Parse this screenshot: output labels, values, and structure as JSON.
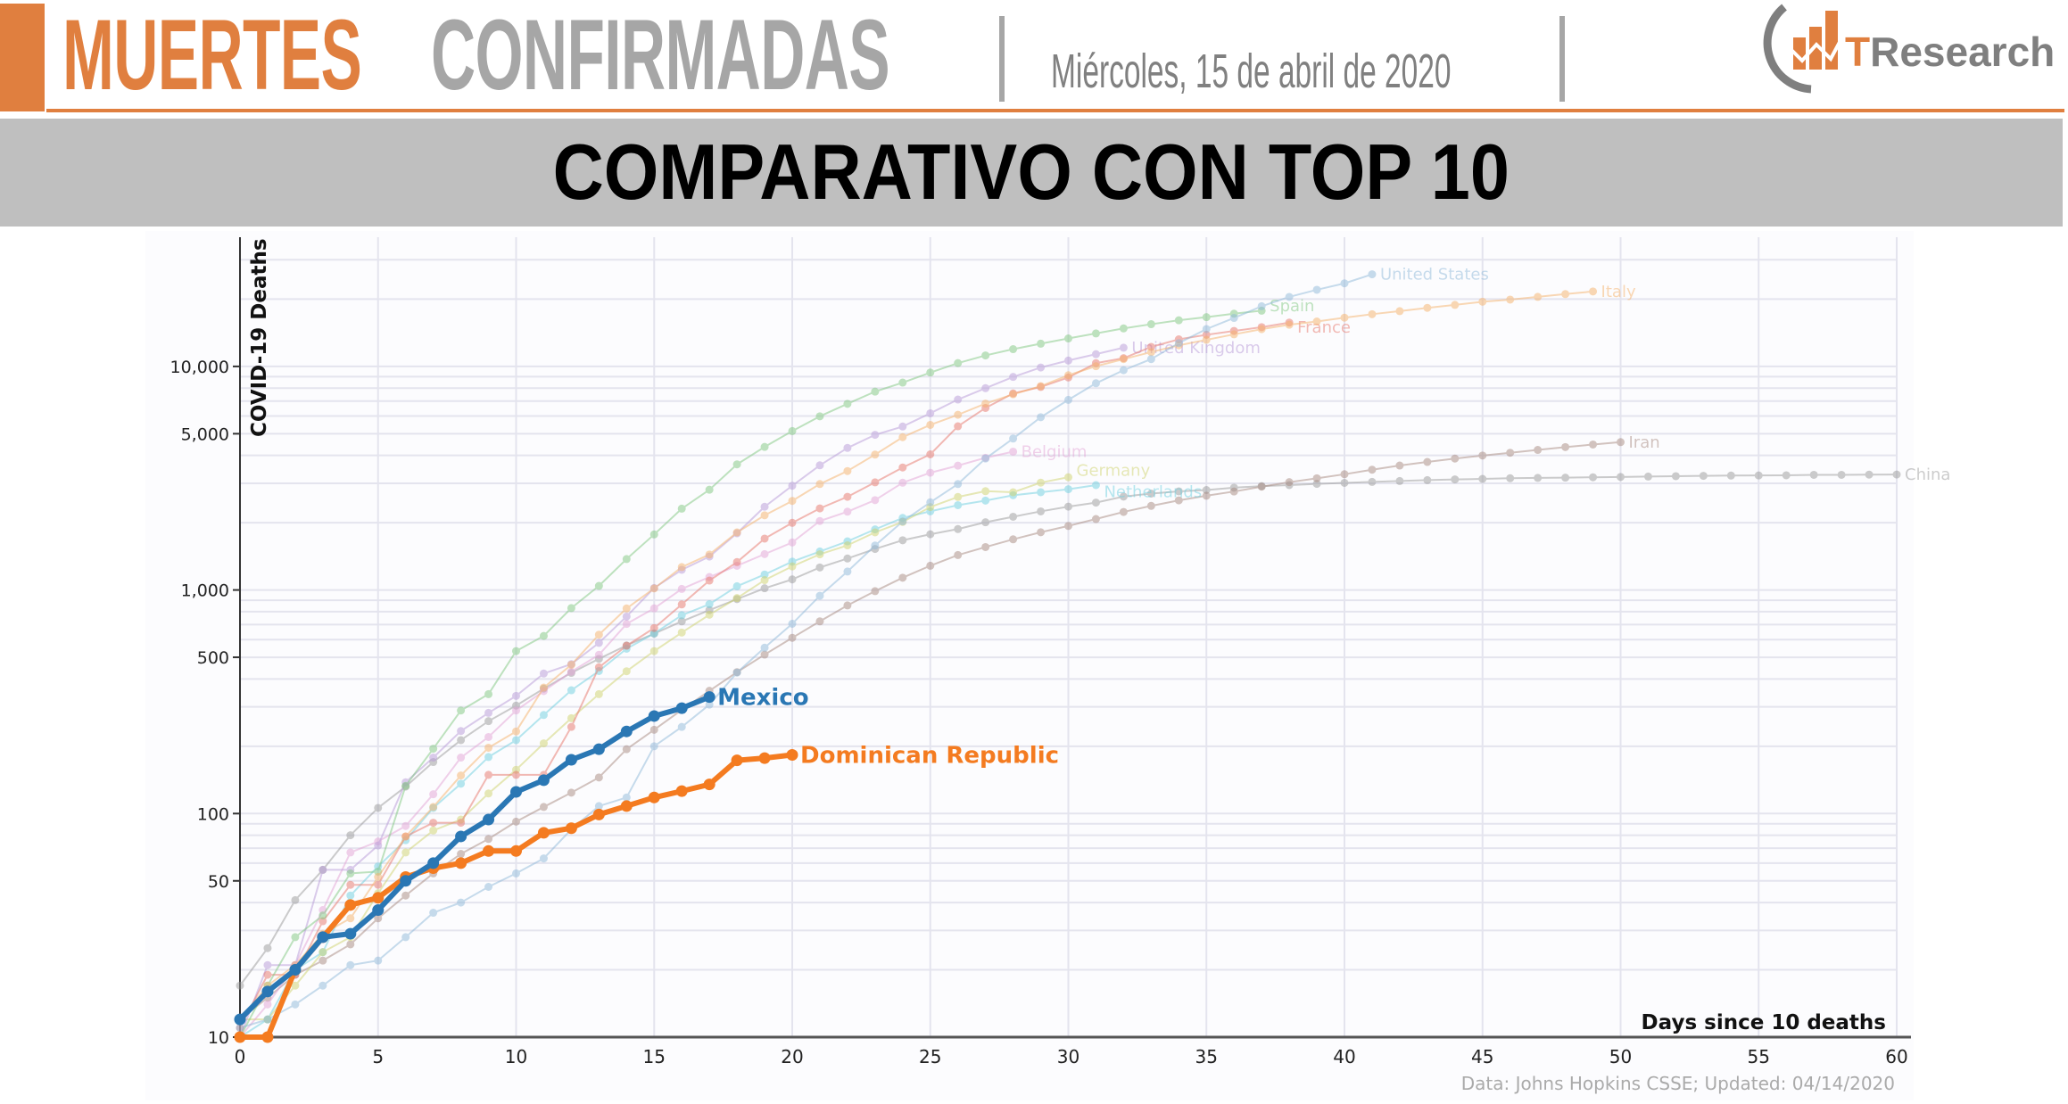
{
  "header": {
    "title_part1": "MUERTES",
    "title_part2": "CONFIRMADAS",
    "date": "Miércoles, 15 de abril de 2020",
    "logo_text": "TResearch",
    "accent_color": "#e07f3f"
  },
  "banner": {
    "title": "COMPARATIVO CON TOP 10"
  },
  "chart_data": {
    "type": "line",
    "title": "",
    "xlabel": "Days since 10 deaths",
    "ylabel": "COVID-19 Deaths",
    "xlim": [
      0,
      60
    ],
    "ylim": [
      10,
      38000
    ],
    "yscale": "log",
    "x_ticks": [
      0,
      5,
      10,
      15,
      20,
      25,
      30,
      35,
      40,
      45,
      50,
      55,
      60
    ],
    "y_ticks": [
      {
        "value": 10,
        "label": "10"
      },
      {
        "value": 50,
        "label": "50"
      },
      {
        "value": 100,
        "label": "100"
      },
      {
        "value": 500,
        "label": "500"
      },
      {
        "value": 1000,
        "label": "1,000"
      },
      {
        "value": 5000,
        "label": "5,000"
      },
      {
        "value": 10000,
        "label": "10,000"
      }
    ],
    "grid": true,
    "source": "Data: Johns Hopkins CSSE; Updated: 04/14/2020",
    "series": [
      {
        "name": "China",
        "color": "#9a9a9a",
        "highlight": false,
        "values": [
          17,
          25,
          41,
          56,
          80,
          106,
          132,
          170,
          213,
          259,
          304,
          362,
          426,
          492,
          565,
          638,
          724,
          813,
          910,
          1018,
          1115,
          1261,
          1383,
          1526,
          1669,
          1775,
          1873,
          2009,
          2126,
          2247,
          2360,
          2460,
          2618,
          2699,
          2763,
          2800,
          2869,
          2915,
          2946,
          2983,
          3015,
          3044,
          3072,
          3100,
          3123,
          3139,
          3161,
          3172,
          3180,
          3193,
          3203,
          3217,
          3230,
          3241,
          3249,
          3253,
          3259,
          3274,
          3274,
          3281,
          3285
        ]
      },
      {
        "name": "Iran",
        "color": "#a88a80",
        "highlight": false,
        "values": [
          12,
          15,
          19,
          22,
          26,
          34,
          43,
          54,
          66,
          77,
          92,
          107,
          124,
          145,
          194,
          237,
          291,
          354,
          429,
          514,
          611,
          724,
          853,
          988,
          1135,
          1284,
          1433,
          1556,
          1685,
          1812,
          1934,
          2077,
          2234,
          2378,
          2517,
          2640,
          2757,
          2898,
          3036,
          3160,
          3294,
          3452,
          3603,
          3739,
          3872,
          3993,
          4110,
          4232,
          4357,
          4474,
          4585
        ]
      },
      {
        "name": "Netherlands",
        "color": "#6fd0e0",
        "highlight": false,
        "values": [
          10,
          12,
          20,
          24,
          43,
          58,
          76,
          106,
          136,
          179,
          213,
          276,
          356,
          434,
          546,
          639,
          771,
          864,
          1039,
          1173,
          1339,
          1487,
          1651,
          1867,
          2101,
          2248,
          2396,
          2511,
          2653,
          2737,
          2823,
          2945
        ]
      },
      {
        "name": "Germany",
        "color": "#cfd36e",
        "highlight": false,
        "values": [
          12,
          12,
          17,
          24,
          28,
          44,
          67,
          84,
          94,
          123,
          157,
          206,
          267,
          342,
          433,
          533,
          645,
          775,
          920,
          1107,
          1275,
          1444,
          1584,
          1810,
          2016,
          2349,
          2607,
          2767,
          2736,
          3022,
          3194
        ]
      },
      {
        "name": "Belgium",
        "color": "#e3a3d6",
        "highlight": false,
        "values": [
          10,
          14,
          21,
          37,
          67,
          75,
          88,
          122,
          178,
          220,
          289,
          353,
          431,
          513,
          705,
          828,
          1011,
          1143,
          1283,
          1447,
          1632,
          2035,
          2240,
          2523,
          3019,
          3346,
          3600,
          3903,
          4157
        ]
      },
      {
        "name": "United Kingdom",
        "color": "#b89ad8",
        "highlight": false,
        "values": [
          10,
          21,
          21,
          56,
          56,
          72,
          138,
          178,
          234,
          282,
          336,
          423,
          466,
          580,
          761,
          1021,
          1231,
          1411,
          1793,
          2357,
          2926,
          3611,
          4320,
          4943,
          5385,
          6171,
          7111,
          7993,
          8974,
          9892,
          10629,
          11347,
          12129
        ]
      },
      {
        "name": "France",
        "color": "#e8766b",
        "highlight": false,
        "values": [
          11,
          19,
          19,
          33,
          48,
          48,
          79,
          91,
          91,
          149,
          149,
          149,
          244,
          451,
          563,
          676,
          862,
          1102,
          1333,
          1698,
          1997,
          2317,
          2611,
          3030,
          3532,
          4043,
          5398,
          6520,
          7574,
          8093,
          8926,
          10343,
          10887,
          12228,
          13215,
          13851,
          14412,
          14986,
          15712
        ]
      },
      {
        "name": "Spain",
        "color": "#7fc77f",
        "highlight": false,
        "values": [
          10,
          17,
          28,
          35,
          54,
          55,
          133,
          195,
          289,
          342,
          533,
          623,
          830,
          1043,
          1375,
          1772,
          2311,
          2808,
          3647,
          4365,
          5138,
          5982,
          6803,
          7716,
          8464,
          9387,
          10348,
          11198,
          11947,
          12641,
          13341,
          14045,
          14792,
          15447,
          16081,
          16606,
          17209,
          17756
        ]
      },
      {
        "name": "Italy",
        "color": "#f6b26b",
        "highlight": false,
        "values": [
          12,
          17,
          21,
          29,
          34,
          52,
          79,
          107,
          148,
          197,
          233,
          366,
          463,
          631,
          827,
          1016,
          1266,
          1441,
          1809,
          2158,
          2503,
          2978,
          3405,
          4032,
          4825,
          5476,
          6077,
          6820,
          7503,
          8165,
          9134,
          10023,
          10779,
          11591,
          12428,
          13155,
          13915,
          14681,
          15362,
          15887,
          16523,
          17127,
          17669,
          18279,
          18849,
          19468,
          19899,
          20465,
          21067,
          21645
        ]
      },
      {
        "name": "United States",
        "color": "#8fb9d9",
        "highlight": false,
        "values": [
          11,
          12,
          14,
          17,
          21,
          22,
          28,
          36,
          40,
          47,
          54,
          63,
          85,
          108,
          118,
          200,
          244,
          307,
          427,
          552,
          706,
          942,
          1209,
          1581,
          2026,
          2467,
          2978,
          3873,
          4757,
          5926,
          7087,
          8407,
          9619,
          10783,
          12722,
          14695,
          16478,
          18586,
          20463,
          22020,
          23529,
          25832
        ]
      },
      {
        "name": "Dominican Republic",
        "color": "#f47b20",
        "highlight": true,
        "values": [
          10,
          10,
          20,
          28,
          39,
          42,
          52,
          57,
          60,
          68,
          68,
          82,
          86,
          99,
          108,
          118,
          126,
          135,
          173,
          177,
          183
        ]
      },
      {
        "name": "Mexico",
        "color": "#2a77b4",
        "highlight": true,
        "values": [
          12,
          16,
          20,
          28,
          29,
          37,
          50,
          60,
          79,
          94,
          125,
          141,
          174,
          194,
          233,
          273,
          296,
          332
        ]
      }
    ]
  }
}
